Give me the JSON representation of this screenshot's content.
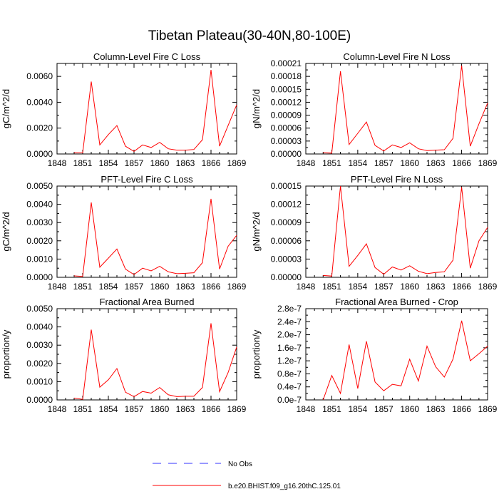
{
  "title": "Tibetan Plateau(30-40N,80-100E)",
  "colors": {
    "series": "#ff0000",
    "no_obs": "#3333ff",
    "axis": "#000000"
  },
  "legend": {
    "items": [
      {
        "label": "No Obs",
        "style": "dashed",
        "color": "#3333ff"
      },
      {
        "label": "b.e20.BHIST.f09_g16.20thC.125.01",
        "style": "solid",
        "color": "#ff0000"
      }
    ]
  },
  "chart_data": [
    {
      "type": "line",
      "title": "Column-Level Fire C Loss",
      "ylabel": "gC/m^2/d",
      "xlim": [
        1848,
        1869
      ],
      "ylim": [
        0,
        0.007
      ],
      "xticks": [
        "1848",
        "1851",
        "1854",
        "1857",
        "1860",
        "1863",
        "1866",
        "1869"
      ],
      "yticks": [
        "0.0000",
        "0.0020",
        "0.0040",
        "0.0060"
      ],
      "ytick_values": [
        0,
        0.002,
        0.004,
        0.006
      ],
      "x": [
        1850,
        1851,
        1852,
        1853,
        1854,
        1855,
        1856,
        1857,
        1858,
        1859,
        1860,
        1861,
        1862,
        1863,
        1864,
        1865,
        1866,
        1867,
        1868,
        1869
      ],
      "series": [
        {
          "values": [
            0.0001,
            8e-05,
            0.0056,
            0.0007,
            0.0015,
            0.0022,
            0.0006,
            0.0002,
            0.0007,
            0.0005,
            0.0009,
            0.0004,
            0.0003,
            0.0003,
            0.00035,
            0.0011,
            0.0065,
            0.0006,
            0.0022,
            0.0038
          ]
        }
      ]
    },
    {
      "type": "line",
      "title": "Column-Level Fire N Loss",
      "ylabel": "gN/m^2/d",
      "xlim": [
        1848,
        1869
      ],
      "ylim": [
        0,
        0.00021
      ],
      "xticks": [
        "1848",
        "1851",
        "1854",
        "1857",
        "1860",
        "1863",
        "1866",
        "1869"
      ],
      "yticks": [
        "0.00000",
        "0.00003",
        "0.00006",
        "0.00009",
        "0.00012",
        "0.00015",
        "0.00018",
        "0.00021"
      ],
      "ytick_values": [
        0,
        3e-05,
        6e-05,
        9e-05,
        0.00012,
        0.00015,
        0.00018,
        0.00021
      ],
      "x": [
        1850,
        1851,
        1852,
        1853,
        1854,
        1855,
        1856,
        1857,
        1858,
        1859,
        1860,
        1861,
        1862,
        1863,
        1864,
        1865,
        1866,
        1867,
        1868,
        1869
      ],
      "series": [
        {
          "values": [
            3e-06,
            2e-06,
            0.000192,
            2.2e-05,
            4.8e-05,
            7.4e-05,
            2e-05,
            7e-06,
            2.1e-05,
            1.5e-05,
            2.6e-05,
            1.2e-05,
            8e-06,
            9e-06,
            1e-05,
            3.6e-05,
            0.000205,
            1.8e-05,
            7e-05,
            0.000118
          ]
        }
      ]
    },
    {
      "type": "line",
      "title": "PFT-Level Fire C Loss",
      "ylabel": "gC/m^2/d",
      "xlim": [
        1848,
        1869
      ],
      "ylim": [
        0,
        0.005
      ],
      "xticks": [
        "1848",
        "1851",
        "1854",
        "1857",
        "1860",
        "1863",
        "1866",
        "1869"
      ],
      "yticks": [
        "0.0000",
        "0.0010",
        "0.0020",
        "0.0030",
        "0.0040",
        "0.0050"
      ],
      "ytick_values": [
        0,
        0.001,
        0.002,
        0.003,
        0.004,
        0.005
      ],
      "x": [
        1850,
        1851,
        1852,
        1853,
        1854,
        1855,
        1856,
        1857,
        1858,
        1859,
        1860,
        1861,
        1862,
        1863,
        1864,
        1865,
        1866,
        1867,
        1868,
        1869
      ],
      "series": [
        {
          "values": [
            8e-05,
            5e-05,
            0.0041,
            0.00055,
            0.00105,
            0.00155,
            0.00045,
            0.00015,
            0.0005,
            0.00035,
            0.0006,
            0.0003,
            0.0002,
            0.00022,
            0.00025,
            0.0008,
            0.0043,
            0.00045,
            0.0017,
            0.0023
          ]
        }
      ]
    },
    {
      "type": "line",
      "title": "PFT-Level Fire N Loss",
      "ylabel": "gN/m^2/d",
      "xlim": [
        1848,
        1869
      ],
      "ylim": [
        0,
        0.00015
      ],
      "xticks": [
        "1848",
        "1851",
        "1854",
        "1857",
        "1860",
        "1863",
        "1866",
        "1869"
      ],
      "yticks": [
        "0.00000",
        "0.00003",
        "0.00006",
        "0.00009",
        "0.00012",
        "0.00015"
      ],
      "ytick_values": [
        0,
        3e-05,
        6e-05,
        9e-05,
        0.00012,
        0.00015
      ],
      "x": [
        1850,
        1851,
        1852,
        1853,
        1854,
        1855,
        1856,
        1857,
        1858,
        1859,
        1860,
        1861,
        1862,
        1863,
        1864,
        1865,
        1866,
        1867,
        1868,
        1869
      ],
      "series": [
        {
          "values": [
            3e-06,
            2e-06,
            0.00015,
            1.8e-05,
            3.6e-05,
            5.5e-05,
            1.6e-05,
            5e-06,
            1.7e-05,
            1.2e-05,
            1.9e-05,
            1e-05,
            6e-06,
            8e-06,
            9e-06,
            2.8e-05,
            0.000148,
            1.5e-05,
            6e-05,
            8.2e-05
          ]
        }
      ]
    },
    {
      "type": "line",
      "title": "Fractional Area Burned",
      "ylabel": "proportion/y",
      "xlim": [
        1848,
        1869
      ],
      "ylim": [
        0,
        0.005
      ],
      "xticks": [
        "1848",
        "1851",
        "1854",
        "1857",
        "1860",
        "1863",
        "1866",
        "1869"
      ],
      "yticks": [
        "0.0000",
        "0.0010",
        "0.0020",
        "0.0030",
        "0.0040",
        "0.0050"
      ],
      "ytick_values": [
        0,
        0.001,
        0.002,
        0.003,
        0.004,
        0.005
      ],
      "x": [
        1850,
        1851,
        1852,
        1853,
        1854,
        1855,
        1856,
        1857,
        1858,
        1859,
        1860,
        1861,
        1862,
        1863,
        1864,
        1865,
        1866,
        1867,
        1868,
        1869
      ],
      "series": [
        {
          "values": [
            0.0001,
            3e-05,
            0.00385,
            0.0007,
            0.0011,
            0.00172,
            0.00042,
            0.00018,
            0.00046,
            0.00037,
            0.00068,
            0.00028,
            0.00018,
            0.0002,
            0.0002,
            0.00068,
            0.0042,
            0.00045,
            0.0015,
            0.0029
          ]
        }
      ]
    },
    {
      "type": "line",
      "title": "Fractional Area Burned - Crop",
      "ylabel": "proportion/y",
      "xlim": [
        1848,
        1869
      ],
      "ylim": [
        0,
        2.8e-07
      ],
      "xticks": [
        "1848",
        "1851",
        "1854",
        "1857",
        "1860",
        "1863",
        "1866",
        "1869"
      ],
      "yticks": [
        "0.0e-7",
        "0.4e-7",
        "0.8e-7",
        "1.2e-7",
        "1.6e-7",
        "2.0e-7",
        "2.4e-7",
        "2.8e-7"
      ],
      "ytick_values": [
        0,
        4e-08,
        8e-08,
        1.2e-07,
        1.6e-07,
        2e-07,
        2.4e-07,
        2.8e-07
      ],
      "x": [
        1850,
        1851,
        1852,
        1853,
        1854,
        1855,
        1856,
        1857,
        1858,
        1859,
        1860,
        1861,
        1862,
        1863,
        1864,
        1865,
        1866,
        1867,
        1868,
        1869
      ],
      "series": [
        {
          "values": [
            0,
            7.5e-08,
            2e-08,
            1.7e-07,
            3.5e-08,
            1.8e-07,
            5.5e-08,
            2.8e-08,
            4.8e-08,
            4.3e-08,
            1.25e-07,
            5.8e-08,
            1.65e-07,
            1.02e-07,
            7e-08,
            1.25e-07,
            2.43e-07,
            1.2e-07,
            1.42e-07,
            1.65e-07
          ]
        }
      ]
    }
  ]
}
